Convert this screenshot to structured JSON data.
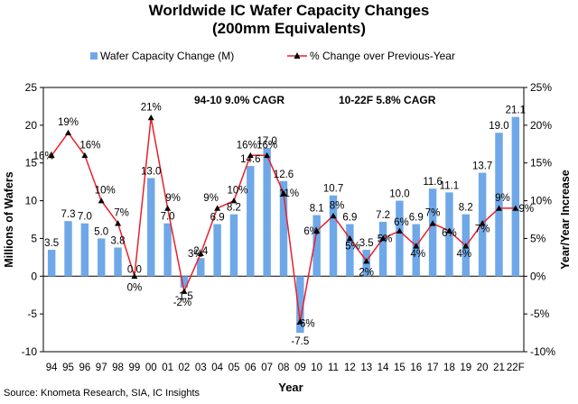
{
  "chart_data": {
    "type": "bar+line",
    "title_line1": "Worldwide IC Wafer Capacity Changes",
    "title_line2": "(200mm Equivalents)",
    "legend": {
      "bar_label": "Wafer Capacity Change (M)",
      "line_label": "% Change over Previous-Year"
    },
    "xlabel": "Year",
    "ylabel_left": "Millions of Wafers",
    "ylabel_right": "Year/Year Increase",
    "ylim_left": [
      -10,
      25
    ],
    "ylim_right": [
      -10,
      25
    ],
    "yticks_left": [
      "-10",
      "-5",
      "0",
      "5",
      "10",
      "15",
      "20",
      "25"
    ],
    "yticks_right": [
      "-10%",
      "-5%",
      "0%",
      "5%",
      "10%",
      "15%",
      "20%",
      "25%"
    ],
    "annotations": [
      "94-10 9.0% CAGR",
      "10-22F 5.8% CAGR"
    ],
    "categories": [
      "94",
      "95",
      "96",
      "97",
      "98",
      "99",
      "00",
      "01",
      "02",
      "03",
      "04",
      "05",
      "06",
      "07",
      "08",
      "09",
      "10",
      "11",
      "12",
      "13",
      "14",
      "15",
      "16",
      "17",
      "18",
      "19",
      "20",
      "21",
      "22F"
    ],
    "bar_values": [
      3.5,
      7.3,
      7.0,
      5.0,
      3.8,
      0.0,
      13.0,
      7.0,
      -1.5,
      2.4,
      6.9,
      8.2,
      14.6,
      17.0,
      12.6,
      -7.5,
      8.1,
      10.7,
      6.9,
      3.5,
      7.2,
      10.0,
      6.9,
      11.6,
      11.1,
      8.2,
      13.7,
      19.0,
      21.1
    ],
    "bar_labels": [
      "3.5",
      "7.3",
      "7.0",
      "5.0",
      "3.8",
      "0.0",
      "13.0",
      "7.0",
      "-1.5",
      "2.4",
      "6.9",
      "8.2",
      "14.6",
      "17.0",
      "12.6",
      "-7.5",
      "8.1",
      "10.7",
      "6.9",
      "3.5",
      "7.2",
      "10.0",
      "6.9",
      "11.6",
      "11.1",
      "8.2",
      "13.7",
      "19.0",
      "21.1"
    ],
    "pct_values": [
      16,
      19,
      16,
      10,
      7,
      0,
      21,
      9,
      -2,
      3,
      9,
      10,
      16,
      16,
      11,
      -6,
      6,
      8,
      5,
      2,
      5,
      6,
      4,
      7,
      6,
      4,
      7,
      9,
      9
    ],
    "pct_labels": [
      "16%",
      "19%",
      "16%",
      "10%",
      "7%",
      "0%",
      "21%",
      "9%",
      "-2%",
      "3%",
      "9%",
      "10%",
      "16%",
      "16%",
      "11%",
      "-6%",
      "6%",
      "8%",
      "5%",
      "2%",
      "5%",
      "6%",
      "4%",
      "7%",
      "6%",
      "4%",
      "7%",
      "9%",
      "9%"
    ],
    "colors": {
      "bar": "#6fa8e8",
      "line": "#e8202a",
      "marker": "#000000"
    }
  },
  "source": "Source: Knometa Research, SIA, IC Insights"
}
